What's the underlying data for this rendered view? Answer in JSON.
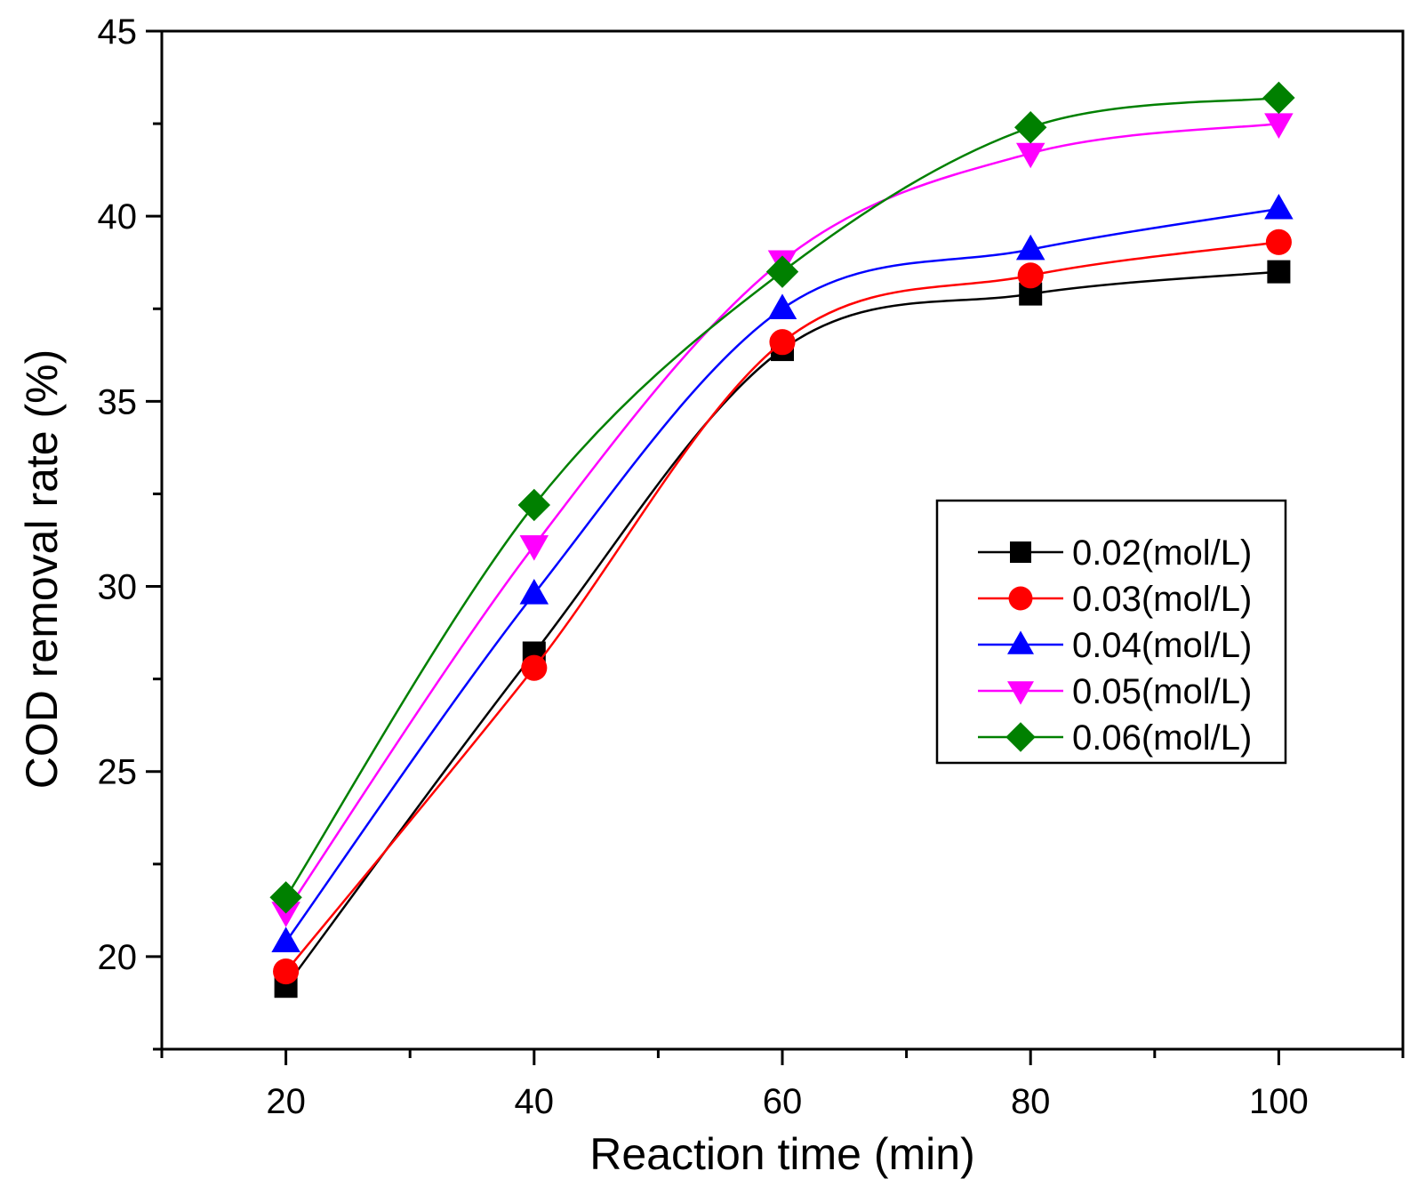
{
  "chart_data": {
    "type": "line",
    "xlabel": "Reaction time (min)",
    "ylabel": "COD removal rate (%)",
    "xlim": [
      10,
      110
    ],
    "ylim": [
      17.5,
      45
    ],
    "x_ticks": [
      20,
      40,
      60,
      80,
      100
    ],
    "y_ticks": [
      20,
      25,
      30,
      35,
      40,
      45
    ],
    "grid": false,
    "legend_position": "center-right",
    "x": [
      20,
      40,
      60,
      80,
      100
    ],
    "series": [
      {
        "name": "0.02(mol/L)",
        "values": [
          19.2,
          28.2,
          36.4,
          37.9,
          38.5
        ],
        "color": "#000000",
        "marker": "square"
      },
      {
        "name": "0.03(mol/L)",
        "values": [
          19.6,
          27.8,
          36.6,
          38.4,
          39.3
        ],
        "color": "#ff0000",
        "marker": "circle"
      },
      {
        "name": "0.04(mol/L)",
        "values": [
          20.4,
          29.8,
          37.5,
          39.1,
          40.2
        ],
        "color": "#0000ff",
        "marker": "triangle-up"
      },
      {
        "name": "0.05(mol/L)",
        "values": [
          21.2,
          31.1,
          38.8,
          41.7,
          42.5
        ],
        "color": "#ff00ff",
        "marker": "triangle-down"
      },
      {
        "name": "0.06(mol/L)",
        "values": [
          21.6,
          32.2,
          38.5,
          42.4,
          43.2
        ],
        "color": "#008000",
        "marker": "diamond"
      }
    ]
  }
}
